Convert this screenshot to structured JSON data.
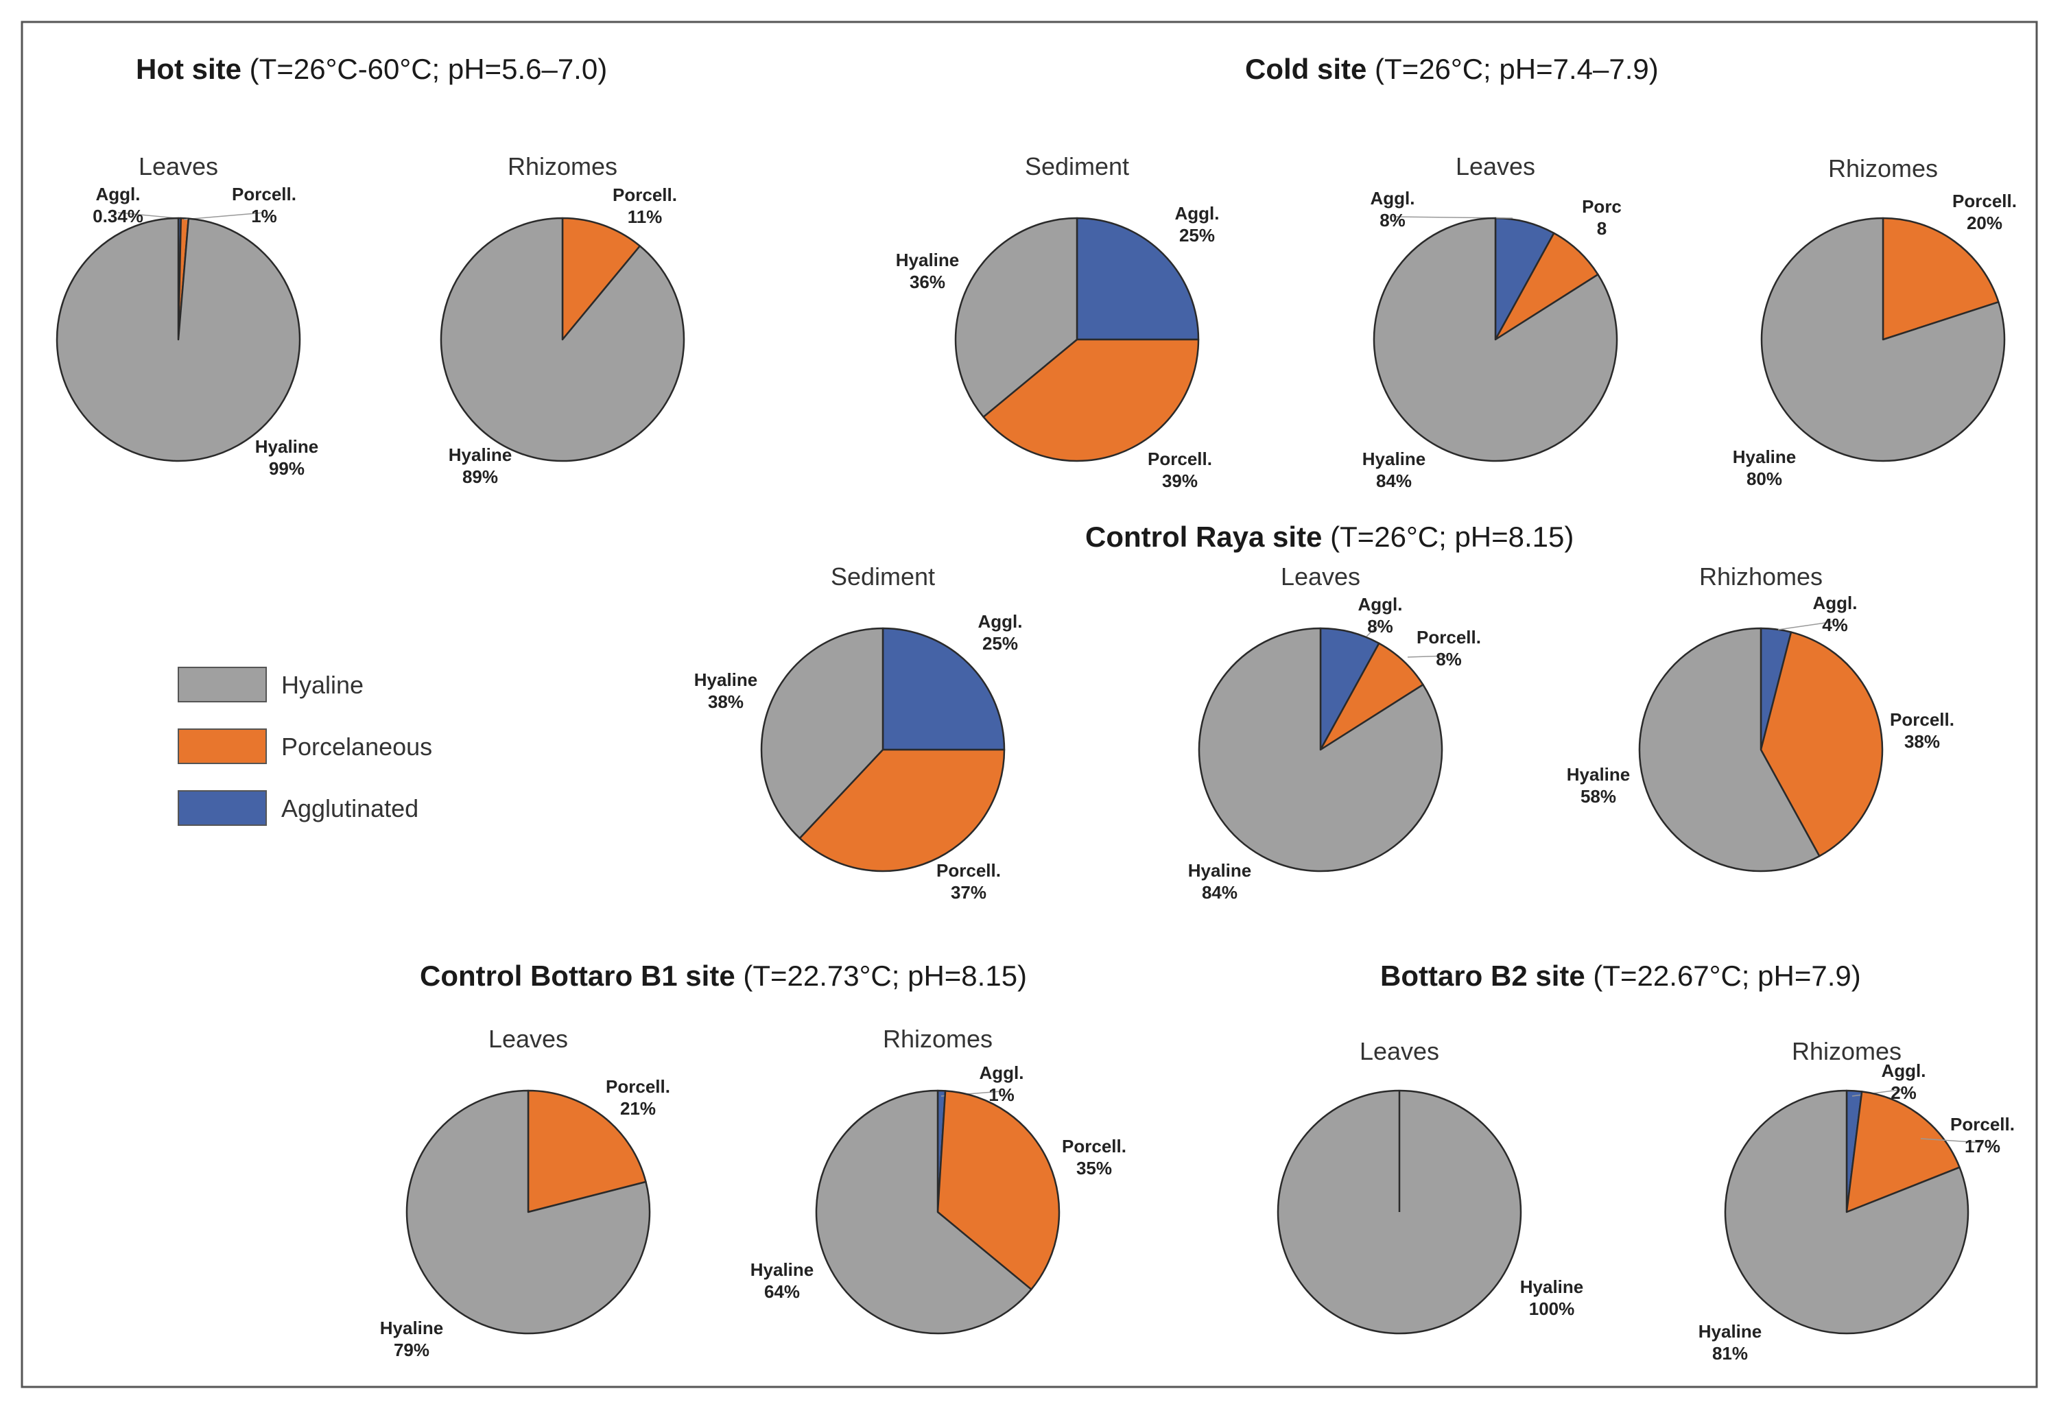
{
  "colors": {
    "Hyaline": "#a0a0a0",
    "Porcelaneous": "#e8762d",
    "Agglutinated": "#4563a6",
    "stroke": "#2a2a2a",
    "leader": "#999999"
  },
  "legend": {
    "items": [
      {
        "key": "Hyaline",
        "label": "Hyaline"
      },
      {
        "key": "Porcelaneous",
        "label": "Porcelaneous"
      },
      {
        "key": "Agglutinated",
        "label": "Agglutinated"
      }
    ]
  },
  "sites": [
    {
      "id": "hot",
      "name": "Hot site",
      "conditions": "(T=26°C-60°C; pH=5.6–7.0)"
    },
    {
      "id": "cold",
      "name": "Cold site",
      "conditions": "(T=26°C; pH=7.4–7.9)"
    },
    {
      "id": "raya",
      "name": "Control Raya site",
      "conditions": "(T=26°C; pH=8.15)"
    },
    {
      "id": "b1",
      "name": "Control Bottaro B1 site",
      "conditions": "(T=22.73°C; pH=8.15)"
    },
    {
      "id": "b2",
      "name": "Bottaro B2 site",
      "conditions": "(T=22.67°C; pH=7.9)"
    }
  ],
  "chart_data": [
    {
      "type": "pie",
      "site": "hot",
      "title": "Leaves",
      "slices": [
        {
          "label": "Agglutinated",
          "value": 0.34,
          "text": [
            "Aggl.",
            "0.34%"
          ]
        },
        {
          "label": "Porcelaneous",
          "value": 1,
          "text": [
            "Porcell.",
            "1%"
          ]
        },
        {
          "label": "Hyaline",
          "value": 99,
          "text": [
            "Hyaline",
            "99%"
          ]
        }
      ]
    },
    {
      "type": "pie",
      "site": "hot",
      "title": "Rhizomes",
      "slices": [
        {
          "label": "Porcelaneous",
          "value": 11,
          "text": [
            "Porcell.",
            "11%"
          ]
        },
        {
          "label": "Hyaline",
          "value": 89,
          "text": [
            "Hyaline",
            "89%"
          ]
        }
      ]
    },
    {
      "type": "pie",
      "site": "cold",
      "title": "Sediment",
      "slices": [
        {
          "label": "Agglutinated",
          "value": 25,
          "text": [
            "Aggl.",
            "25%"
          ]
        },
        {
          "label": "Porcelaneous",
          "value": 39,
          "text": [
            "Porcell.",
            "39%"
          ]
        },
        {
          "label": "Hyaline",
          "value": 36,
          "text": [
            "Hyaline",
            "36%"
          ]
        }
      ]
    },
    {
      "type": "pie",
      "site": "cold",
      "title": "Leaves",
      "slices": [
        {
          "label": "Agglutinated",
          "value": 8,
          "text": [
            "Aggl.",
            "8%"
          ]
        },
        {
          "label": "Porcelaneous",
          "value": 8,
          "text": [
            "Porc",
            "8"
          ]
        },
        {
          "label": "Hyaline",
          "value": 84,
          "text": [
            "Hyaline",
            "84%"
          ]
        }
      ]
    },
    {
      "type": "pie",
      "site": "cold",
      "title": "Rhizomes",
      "slices": [
        {
          "label": "Porcelaneous",
          "value": 20,
          "text": [
            "Porcell.",
            "20%"
          ]
        },
        {
          "label": "Hyaline",
          "value": 80,
          "text": [
            "Hyaline",
            "80%"
          ]
        }
      ]
    },
    {
      "type": "pie",
      "site": "raya",
      "title": "Sediment",
      "slices": [
        {
          "label": "Agglutinated",
          "value": 25,
          "text": [
            "Aggl.",
            "25%"
          ]
        },
        {
          "label": "Porcelaneous",
          "value": 37,
          "text": [
            "Porcell.",
            "37%"
          ]
        },
        {
          "label": "Hyaline",
          "value": 38,
          "text": [
            "Hyaline",
            "38%"
          ]
        }
      ]
    },
    {
      "type": "pie",
      "site": "raya",
      "title": "Leaves",
      "slices": [
        {
          "label": "Agglutinated",
          "value": 8,
          "text": [
            "Aggl.",
            "8%"
          ]
        },
        {
          "label": "Porcelaneous",
          "value": 8,
          "text": [
            "Porcell.",
            "8%"
          ]
        },
        {
          "label": "Hyaline",
          "value": 84,
          "text": [
            "Hyaline",
            "84%"
          ]
        }
      ]
    },
    {
      "type": "pie",
      "site": "raya",
      "title": "Rhizhomes",
      "slices": [
        {
          "label": "Agglutinated",
          "value": 4,
          "text": [
            "Aggl.",
            "4%"
          ]
        },
        {
          "label": "Porcelaneous",
          "value": 38,
          "text": [
            "Porcell.",
            "38%"
          ]
        },
        {
          "label": "Hyaline",
          "value": 58,
          "text": [
            "Hyaline",
            "58%"
          ]
        }
      ]
    },
    {
      "type": "pie",
      "site": "b1",
      "title": "Leaves",
      "slices": [
        {
          "label": "Porcelaneous",
          "value": 21,
          "text": [
            "Porcell.",
            "21%"
          ]
        },
        {
          "label": "Hyaline",
          "value": 79,
          "text": [
            "Hyaline",
            "79%"
          ]
        }
      ]
    },
    {
      "type": "pie",
      "site": "b1",
      "title": "Rhizomes",
      "slices": [
        {
          "label": "Agglutinated",
          "value": 1,
          "text": [
            "Aggl.",
            "1%"
          ]
        },
        {
          "label": "Porcelaneous",
          "value": 35,
          "text": [
            "Porcell.",
            "35%"
          ]
        },
        {
          "label": "Hyaline",
          "value": 64,
          "text": [
            "Hyaline",
            "64%"
          ]
        }
      ]
    },
    {
      "type": "pie",
      "site": "b2",
      "title": "Leaves",
      "slices": [
        {
          "label": "Hyaline",
          "value": 100,
          "text": [
            "Hyaline",
            "100%"
          ]
        }
      ]
    },
    {
      "type": "pie",
      "site": "b2",
      "title": "Rhizomes",
      "slices": [
        {
          "label": "Agglutinated",
          "value": 2,
          "text": [
            "Aggl.",
            "2%"
          ]
        },
        {
          "label": "Porcelaneous",
          "value": 17,
          "text": [
            "Porcell.",
            "17%"
          ]
        },
        {
          "label": "Hyaline",
          "value": 81,
          "text": [
            "Hyaline",
            "81%"
          ]
        }
      ]
    }
  ]
}
